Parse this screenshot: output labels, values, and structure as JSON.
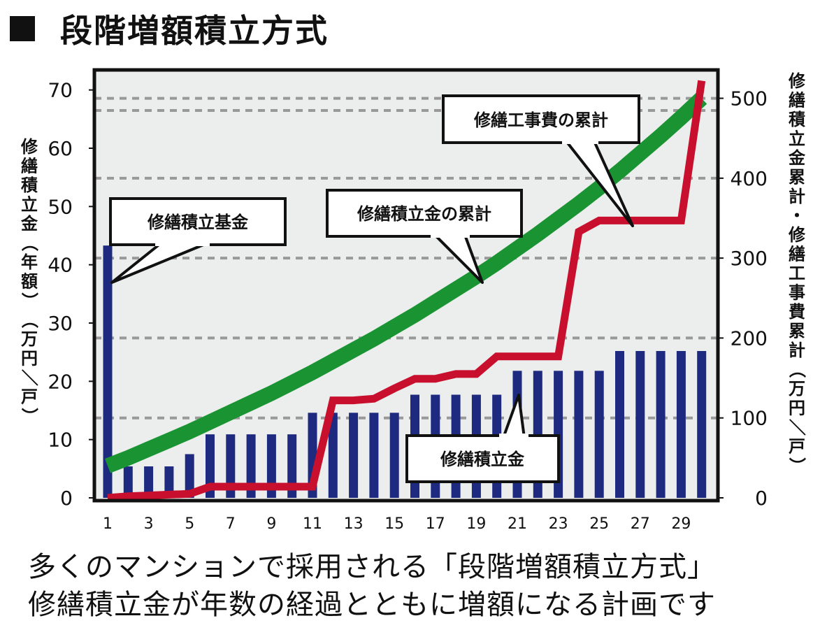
{
  "title": "段階増額積立方式",
  "caption_line1": "多くのマンションで採用される「段階増額積立方式」",
  "caption_line2": "修繕積立金が年数の経過とともに増額になる計画です",
  "colors": {
    "bars": "#1d2a80",
    "savings_line": "#1a9432",
    "repair_line": "#c8102e",
    "plot_bg": "#eceeed",
    "grid": "#999999"
  },
  "chart_data": {
    "type": "bar",
    "grid": true,
    "x": [
      1,
      2,
      3,
      4,
      5,
      6,
      7,
      8,
      9,
      10,
      11,
      12,
      13,
      14,
      15,
      16,
      17,
      18,
      19,
      20,
      21,
      22,
      23,
      24,
      25,
      26,
      27,
      28,
      29,
      30
    ],
    "x_tick_labels": [
      "1",
      "3",
      "5",
      "7",
      "9",
      "11",
      "13",
      "15",
      "17",
      "19",
      "21",
      "23",
      "25",
      "27",
      "29"
    ],
    "left_axis": {
      "label": "修繕積立金（年額）（万円／戸）",
      "ylim": [
        0,
        72
      ],
      "ticks": [
        0,
        10,
        20,
        30,
        40,
        50,
        60,
        70
      ]
    },
    "right_axis": {
      "label": "修繕積立金累計・修繕工事費累計（万円／戸）",
      "ylim": [
        0,
        525
      ],
      "ticks": [
        0,
        100,
        200,
        300,
        400,
        500
      ]
    },
    "series": [
      {
        "name": "修繕積立金",
        "type": "bar",
        "axis": "left",
        "values": [
          43.3,
          5.4,
          5.4,
          5.4,
          7.5,
          10.9,
          10.9,
          10.9,
          10.9,
          10.9,
          14.6,
          14.6,
          14.6,
          14.6,
          14.6,
          17.7,
          17.7,
          17.7,
          17.7,
          17.7,
          21.8,
          21.8,
          21.8,
          21.8,
          21.8,
          25.2,
          25.2,
          25.2,
          25.2,
          25.2
        ]
      },
      {
        "name": "修繕積立金の累計",
        "type": "line",
        "axis": "right",
        "values": [
          40,
          50,
          61,
          72,
          83,
          95,
          107,
          119,
          131,
          144,
          157,
          171,
          185,
          199,
          214,
          229,
          245,
          261,
          277,
          294,
          312,
          330,
          349,
          368,
          388,
          409,
          431,
          453,
          476,
          500
        ]
      },
      {
        "name": "修繕工事費の累計",
        "type": "line",
        "axis": "right",
        "values": [
          0,
          2,
          3,
          4,
          5,
          14,
          14,
          14,
          14,
          14,
          14,
          122,
          122,
          124,
          137,
          149,
          149,
          155,
          155,
          177,
          177,
          177,
          177,
          333,
          347,
          347,
          347,
          347,
          347,
          522
        ]
      }
    ],
    "annotations": [
      "修繕積立基金",
      "修繕積立金の累計",
      "修繕工事費の累計",
      "修繕積立金"
    ]
  }
}
